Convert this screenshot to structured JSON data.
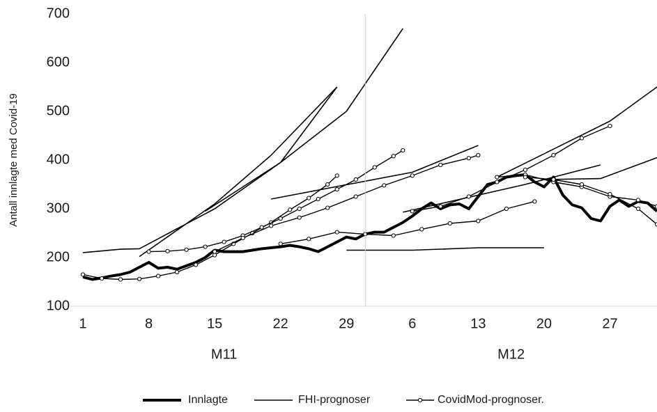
{
  "chart_data": {
    "type": "line",
    "y_label": "Antall innlagte med Covid-19",
    "ylim": [
      100,
      700
    ],
    "yticks": [
      100,
      200,
      300,
      400,
      500,
      600,
      700
    ],
    "xlim": [
      1,
      62
    ],
    "xticks": [
      1,
      8,
      15,
      22,
      29,
      {
        "value": 36,
        "label": "6"
      },
      {
        "value": 43,
        "label": "13"
      },
      {
        "value": 50,
        "label": "20"
      },
      {
        "value": 57,
        "label": "27"
      }
    ],
    "x_separator": 31,
    "x_groups": [
      "M11",
      "M12"
    ],
    "series": [
      {
        "name": "Innlagte",
        "color": "#000000",
        "width": 4,
        "markers": false,
        "lines": [
          {
            "x": [
              1,
              2,
              3,
              4,
              5,
              6,
              7,
              8,
              9,
              10,
              11,
              12,
              13,
              14,
              15,
              16,
              17,
              18,
              19,
              20,
              21,
              22,
              23,
              24,
              25,
              26,
              27,
              28,
              29,
              30,
              31,
              32,
              33,
              34,
              35,
              36,
              37,
              38,
              39,
              40,
              41,
              42,
              43,
              44,
              45,
              46,
              47,
              48,
              49,
              50,
              51,
              52,
              53,
              54,
              55,
              56,
              57,
              58,
              59,
              60,
              61,
              62
            ],
            "values": [
              160,
              155,
              158,
              162,
              165,
              170,
              180,
              190,
              178,
              180,
              176,
              183,
              190,
              200,
              215,
              212,
              212,
              212,
              215,
              218,
              220,
              222,
              225,
              222,
              218,
              212,
              222,
              232,
              242,
              238,
              248,
              252,
              252,
              262,
              272,
              285,
              300,
              312,
              300,
              308,
              310,
              300,
              325,
              350,
              355,
              365,
              368,
              370,
              355,
              345,
              365,
              328,
              308,
              302,
              280,
              275,
              305,
              318,
              305,
              315,
              312,
              295
            ]
          }
        ]
      },
      {
        "name": "FHI-prognoser",
        "color": "#000000",
        "width": 1.6,
        "markers": false,
        "lines": [
          {
            "x": [
              1,
              5,
              7,
              15,
              22,
              29,
              35
            ],
            "values": [
              210,
              217,
              218,
              300,
              395,
              500,
              670
            ]
          },
          {
            "x": [
              7,
              15,
              21,
              28
            ],
            "values": [
              202,
              310,
              410,
              550
            ]
          },
          {
            "x": [
              14,
              22,
              28
            ],
            "values": [
              295,
              395,
              550
            ]
          },
          {
            "x": [
              21,
              36,
              43
            ],
            "values": [
              320,
              375,
              430
            ]
          },
          {
            "x": [
              35,
              48,
              56
            ],
            "values": [
              293,
              350,
              390
            ]
          },
          {
            "x": [
              29,
              36,
              43,
              50
            ],
            "values": [
              215,
              215,
              220,
              220
            ]
          },
          {
            "x": [
              45,
              57,
              62
            ],
            "values": [
              365,
              480,
              550
            ]
          },
          {
            "x": [
              50,
              56,
              62
            ],
            "values": [
              360,
              362,
              405
            ]
          }
        ]
      },
      {
        "name": "CovidMod-prognoser.",
        "color": "#000000",
        "width": 1.4,
        "markers": true,
        "lines": [
          {
            "x": [
              1,
              3,
              5,
              7,
              9,
              11,
              13,
              15,
              17,
              19,
              21,
              23,
              25,
              27,
              28
            ],
            "values": [
              165,
              157,
              155,
              156,
              162,
              170,
              185,
              205,
              228,
              250,
              272,
              298,
              322,
              350,
              368
            ]
          },
          {
            "x": [
              8,
              10,
              12,
              14,
              16,
              18,
              20,
              22,
              24,
              26,
              28,
              30,
              32,
              34,
              35
            ],
            "values": [
              212,
              213,
              216,
              222,
              232,
              245,
              262,
              280,
              300,
              320,
              340,
              360,
              385,
              408,
              420
            ]
          },
          {
            "x": [
              15,
              18,
              21,
              24,
              27,
              30,
              33,
              36,
              39,
              42,
              43
            ],
            "values": [
              212,
              240,
              265,
              282,
              302,
              325,
              348,
              368,
              390,
              404,
              410
            ]
          },
          {
            "x": [
              22,
              25,
              28,
              31,
              34,
              37,
              40,
              43,
              46,
              49
            ],
            "values": [
              228,
              238,
              252,
              248,
              245,
              258,
              270,
              275,
              300,
              315
            ]
          },
          {
            "x": [
              36,
              39,
              42,
              45,
              48,
              51,
              54,
              57
            ],
            "values": [
              295,
              305,
              325,
              355,
              380,
              410,
              445,
              470
            ]
          },
          {
            "x": [
              45,
              48,
              51,
              54,
              57,
              60,
              62
            ],
            "values": [
              365,
              370,
              355,
              345,
              325,
              318,
              305
            ]
          },
          {
            "x": [
              48,
              51,
              54,
              57,
              60,
              62
            ],
            "values": [
              365,
              360,
              350,
              330,
              300,
              268
            ]
          }
        ]
      }
    ]
  }
}
